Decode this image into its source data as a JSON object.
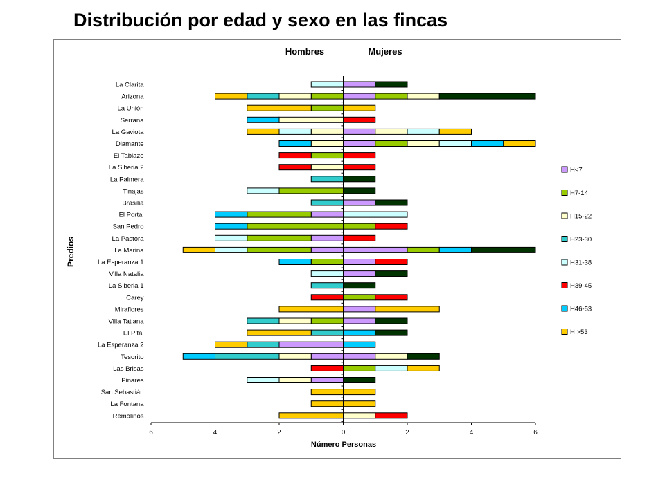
{
  "title": "Distribución por edad y sexo en las fincas",
  "chart_data": {
    "type": "bar",
    "orientation": "horizontal",
    "stacked": true,
    "diverging": true,
    "group_labels": [
      "Hombres",
      "Mujeres"
    ],
    "xlabel": "Número Personas",
    "ylabel": "Predios",
    "xlim": [
      -6,
      6
    ],
    "x_ticks": [
      -6,
      -4,
      -2,
      0,
      2,
      4,
      6
    ],
    "x_tick_labels": [
      "6",
      "4",
      "2",
      "0",
      "2",
      "4",
      "6"
    ],
    "legend_position": "right",
    "grid": false,
    "categories": [
      "La Clarita",
      "Arizona",
      "La Unión",
      "Serrana",
      "La Gaviota",
      "Diamante",
      "El Tablazo",
      "La Siberia 2",
      "La Palmera",
      "Tinajas",
      "Brasilia",
      "El Portal",
      "San Pedro",
      "La Pastora",
      "La Marina",
      "La Esperanza 1",
      "Villa Natalia",
      "La Siberia 1",
      "Carey",
      "Miraflores",
      "Villa Tatiana",
      "El Pital",
      "La Esperanza 2",
      "Tesorito",
      "Las Brisas",
      "Pinares",
      "San Sebastián",
      "La Fontana",
      "Remolinos"
    ],
    "series": [
      {
        "name": "H<7",
        "color": "#cc99ff",
        "men": [
          0,
          0,
          0,
          0,
          0,
          0,
          0,
          0,
          0,
          0,
          0,
          1,
          0,
          1,
          1,
          0,
          0,
          0,
          0,
          0,
          0,
          0,
          2,
          1,
          0,
          1,
          0,
          0,
          0
        ],
        "women": [
          1,
          1,
          0,
          0,
          1,
          1,
          0,
          0,
          0,
          0,
          1,
          0,
          0,
          0,
          2,
          1,
          1,
          0,
          0,
          1,
          1,
          0,
          0,
          1,
          0,
          0,
          0,
          0,
          0
        ]
      },
      {
        "name": "H7-14",
        "color": "#99cc00",
        "men": [
          0,
          1,
          1,
          0,
          0,
          0,
          1,
          0,
          0,
          2,
          0,
          2,
          3,
          2,
          2,
          1,
          0,
          0,
          0,
          0,
          1,
          0,
          0,
          0,
          0,
          0,
          0,
          0,
          0
        ],
        "women": [
          0,
          1,
          0,
          0,
          0,
          1,
          0,
          0,
          0,
          0,
          0,
          0,
          1,
          0,
          1,
          0,
          0,
          0,
          1,
          0,
          0,
          0,
          0,
          0,
          1,
          0,
          0,
          0,
          0
        ]
      },
      {
        "name": "H15-22",
        "color": "#ffffcc",
        "men": [
          0,
          1,
          0,
          2,
          1,
          1,
          0,
          1,
          0,
          0,
          0,
          0,
          0,
          0,
          0,
          0,
          0,
          0,
          0,
          0,
          1,
          0,
          0,
          1,
          0,
          1,
          0,
          0,
          0
        ],
        "women": [
          0,
          1,
          0,
          0,
          1,
          1,
          0,
          0,
          0,
          0,
          0,
          0,
          0,
          0,
          0,
          0,
          0,
          0,
          0,
          0,
          0,
          0,
          0,
          1,
          0,
          0,
          0,
          0,
          1
        ]
      },
      {
        "name": "H23-30",
        "color": "#33cccc",
        "men": [
          0,
          1,
          0,
          0,
          0,
          0,
          0,
          0,
          1,
          0,
          1,
          0,
          0,
          0,
          0,
          0,
          0,
          1,
          0,
          0,
          1,
          1,
          1,
          2,
          0,
          0,
          0,
          0,
          0
        ],
        "women": [
          0,
          0,
          0,
          0,
          0,
          0,
          0,
          0,
          0,
          0,
          0,
          0,
          0,
          0,
          0,
          0,
          0,
          0,
          0,
          0,
          0,
          0,
          0,
          0,
          0,
          0,
          0,
          0,
          0
        ]
      },
      {
        "name": "H31-38",
        "color": "#ccffff",
        "men": [
          1,
          0,
          0,
          0,
          1,
          0,
          0,
          0,
          0,
          1,
          0,
          0,
          0,
          1,
          1,
          0,
          1,
          0,
          0,
          0,
          0,
          0,
          0,
          0,
          0,
          1,
          0,
          0,
          0
        ],
        "women": [
          0,
          0,
          0,
          0,
          1,
          1,
          0,
          0,
          0,
          0,
          0,
          2,
          0,
          0,
          0,
          0,
          0,
          0,
          0,
          0,
          0,
          0,
          0,
          0,
          1,
          0,
          0,
          0,
          0
        ]
      },
      {
        "name": "H39-45",
        "color": "#ff0000",
        "men": [
          0,
          0,
          0,
          0,
          0,
          0,
          1,
          1,
          0,
          0,
          0,
          0,
          0,
          0,
          0,
          0,
          0,
          0,
          1,
          0,
          0,
          0,
          0,
          0,
          1,
          0,
          0,
          0,
          0
        ],
        "women": [
          0,
          0,
          0,
          1,
          0,
          0,
          1,
          1,
          0,
          0,
          0,
          0,
          1,
          1,
          0,
          1,
          0,
          0,
          1,
          0,
          0,
          0,
          0,
          0,
          0,
          0,
          0,
          0,
          1
        ]
      },
      {
        "name": "H46-53",
        "color": "#00ccff",
        "men": [
          0,
          0,
          0,
          1,
          0,
          1,
          0,
          0,
          0,
          0,
          0,
          1,
          1,
          0,
          0,
          1,
          0,
          0,
          0,
          0,
          0,
          0,
          0,
          1,
          0,
          0,
          0,
          0,
          0
        ],
        "women": [
          0,
          0,
          0,
          0,
          0,
          1,
          0,
          0,
          0,
          0,
          0,
          0,
          0,
          0,
          1,
          0,
          0,
          0,
          0,
          0,
          0,
          1,
          1,
          0,
          0,
          0,
          0,
          0,
          0
        ]
      },
      {
        "name": "H >53",
        "color": "#ffcc00",
        "men": [
          0,
          1,
          2,
          0,
          1,
          0,
          0,
          0,
          0,
          0,
          0,
          0,
          0,
          0,
          1,
          0,
          0,
          0,
          0,
          2,
          0,
          2,
          1,
          0,
          0,
          0,
          1,
          1,
          2
        ],
        "women": [
          0,
          0,
          1,
          0,
          1,
          1,
          0,
          0,
          0,
          0,
          0,
          0,
          0,
          0,
          0,
          0,
          0,
          0,
          0,
          2,
          0,
          0,
          0,
          0,
          1,
          0,
          1,
          1,
          0
        ]
      },
      {
        "name": "",
        "color": "#003300",
        "men": [
          0,
          0,
          0,
          0,
          0,
          0,
          0,
          0,
          0,
          0,
          0,
          0,
          0,
          0,
          0,
          0,
          0,
          0,
          0,
          0,
          0,
          0,
          0,
          0,
          0,
          0,
          0,
          0,
          0
        ],
        "women": [
          1,
          3,
          0,
          0,
          0,
          0,
          0,
          0,
          1,
          1,
          1,
          0,
          0,
          0,
          2,
          0,
          1,
          1,
          0,
          0,
          1,
          1,
          0,
          1,
          0,
          1,
          0,
          0,
          0
        ]
      }
    ]
  }
}
